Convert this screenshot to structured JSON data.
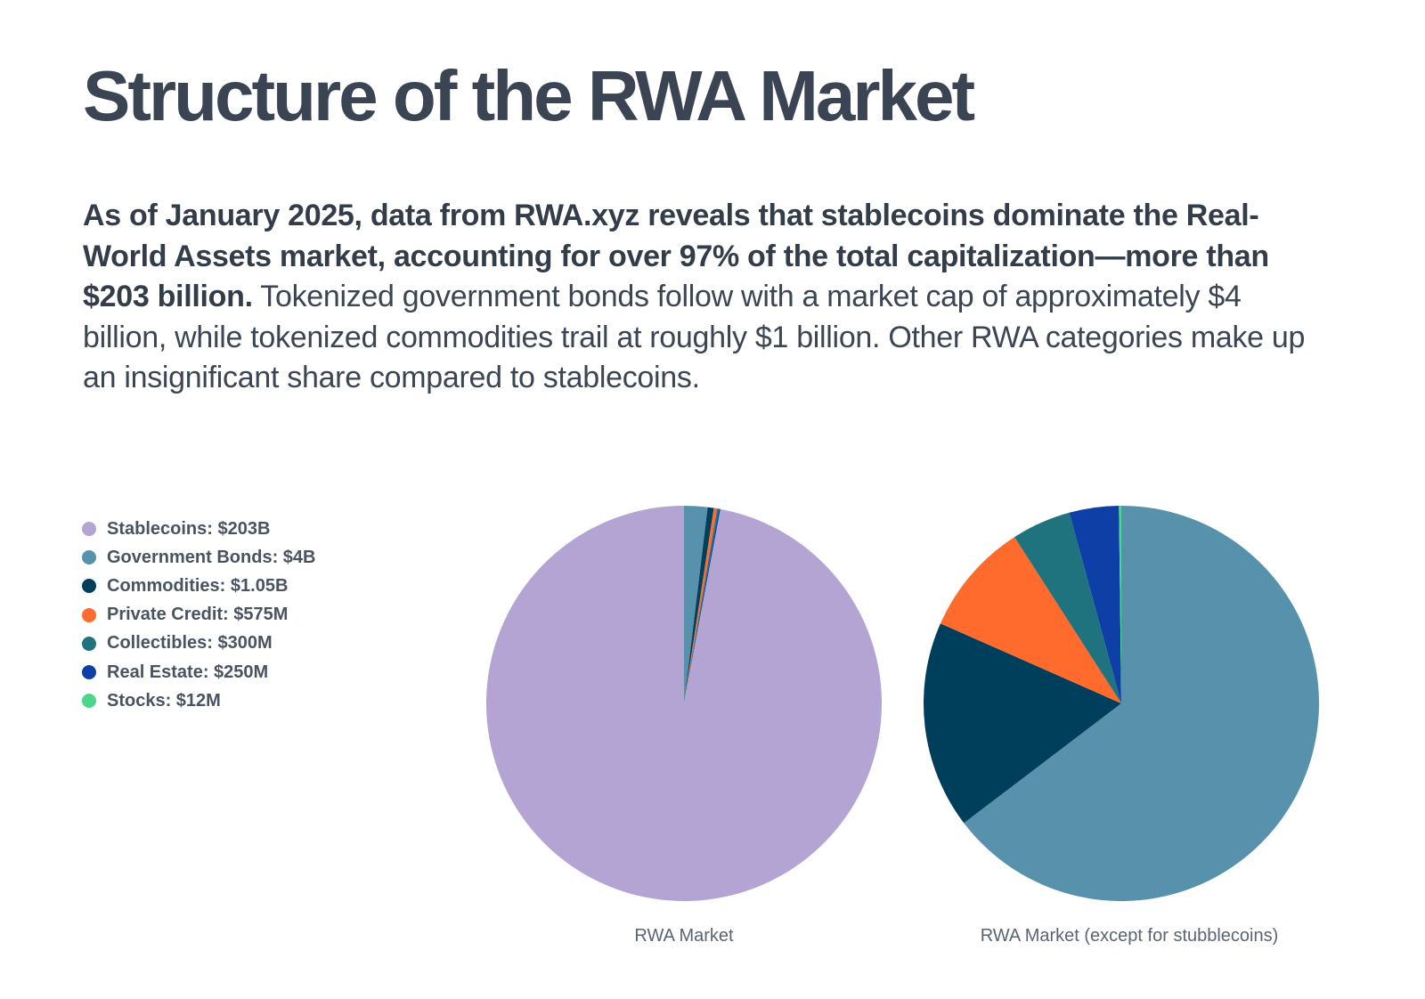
{
  "title": "Structure of the RWA Market",
  "paragraph": {
    "bold": "As of January 2025, data from RWA.xyz reveals that stablecoins dominate the Real-World Assets market, accounting for over 97% of the total capitalization—more than $203 billion.",
    "regular": " Tokenized government bonds follow with a market cap of approximately $4 billion, while tokenized commodities trail at roughly $1 billion. Other RWA categories make up an insignificant share compared to stablecoins."
  },
  "legend": [
    {
      "label": "Stablecoins: $203B",
      "color": "#b3a4d3"
    },
    {
      "label": "Government Bonds: $4B",
      "color": "#5891ac"
    },
    {
      "label": "Commodities: $1.05B",
      "color": "#003f5c"
    },
    {
      "label": "Private Credit: $575M",
      "color": "#ff6b2d"
    },
    {
      "label": "Collectibles:  $300M",
      "color": "#1f737f"
    },
    {
      "label": "Real Estate: $250M",
      "color": "#0e3fa6"
    },
    {
      "label": "Stocks: $12M",
      "color": "#4cd68a"
    }
  ],
  "chart_data": [
    {
      "type": "pie",
      "title": "RWA Market",
      "unit": "USD billions",
      "categories": [
        "Government Bonds",
        "Commodities",
        "Private Credit",
        "Collectibles",
        "Real Estate",
        "Stocks",
        "Stablecoins"
      ],
      "values": [
        4,
        1.05,
        0.575,
        0.3,
        0.25,
        0.012,
        203
      ],
      "colors": [
        "#5891ac",
        "#003f5c",
        "#ff6b2d",
        "#1f737f",
        "#0e3fa6",
        "#4cd68a",
        "#b3a4d3"
      ],
      "start": "12 o'clock, clockwise"
    },
    {
      "type": "pie",
      "title": "RWA Market (except for stubblecoins)",
      "unit": "USD billions",
      "categories": [
        "Government Bonds",
        "Commodities",
        "Private Credit",
        "Collectibles",
        "Real Estate",
        "Stocks"
      ],
      "values": [
        4,
        1.05,
        0.575,
        0.3,
        0.25,
        0.012
      ],
      "colors": [
        "#5891ac",
        "#003f5c",
        "#ff6b2d",
        "#1f737f",
        "#0e3fa6",
        "#4cd68a"
      ],
      "start": "12 o'clock, clockwise"
    }
  ]
}
